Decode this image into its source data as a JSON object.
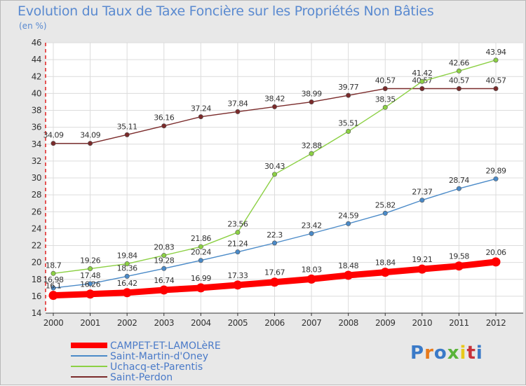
{
  "chart_data": {
    "type": "line",
    "title": "Evolution du Taux de Taxe Foncière sur les Propriétés Non Bâties",
    "unit_label": "(en %)",
    "categories": [
      "2000",
      "2001",
      "2002",
      "2003",
      "2004",
      "2005",
      "2006",
      "2007",
      "2008",
      "2009",
      "2010",
      "2011",
      "2012"
    ],
    "ylim": [
      14,
      46
    ],
    "yticks": [
      14,
      16,
      18,
      20,
      22,
      24,
      26,
      28,
      30,
      32,
      34,
      36,
      38,
      40,
      42,
      44,
      46
    ],
    "grid": true,
    "legend_position": "bottom-left",
    "series": [
      {
        "name": "CAMPET-ET-LAMOLèRE",
        "color": "#ff0000",
        "values": [
          16.1,
          16.26,
          16.42,
          16.74,
          16.99,
          17.33,
          17.67,
          18.03,
          18.48,
          18.84,
          19.21,
          19.58,
          20.06
        ],
        "labels": [
          "16.1",
          "16.26",
          "16.42",
          "16.74",
          "16.99",
          "17.33",
          "17.67",
          "18.03",
          "18.48",
          "18.84",
          "19.21",
          "19.58",
          "20.06"
        ]
      },
      {
        "name": "Saint-Martin-d'Oney",
        "color": "#4a8ac8",
        "values": [
          16.98,
          17.48,
          18.36,
          19.28,
          20.24,
          21.24,
          22.3,
          23.42,
          24.59,
          25.82,
          27.37,
          28.74,
          29.89
        ],
        "labels": [
          "16.98",
          "17.48",
          "18.36",
          "19.28",
          "20.24",
          "21.24",
          "22.3",
          "23.42",
          "24.59",
          "25.82",
          "27.37",
          "28.74",
          "29.89"
        ]
      },
      {
        "name": "Uchacq-et-Parentis",
        "color": "#8cd044",
        "values": [
          18.7,
          19.26,
          19.84,
          20.83,
          21.86,
          23.56,
          30.43,
          32.88,
          35.51,
          38.35,
          41.42,
          42.66,
          43.94
        ],
        "labels": [
          "18.7",
          "19.26",
          "19.84",
          "20.83",
          "21.86",
          "23.56",
          "30.43",
          "32.88",
          "35.51",
          "38.35",
          "41.42",
          "42.66",
          "43.94"
        ]
      },
      {
        "name": "Saint-Perdon",
        "color": "#7a2a2a",
        "values": [
          34.09,
          34.09,
          35.11,
          36.16,
          37.24,
          37.84,
          38.42,
          38.99,
          39.77,
          40.57,
          40.57,
          40.57,
          40.57
        ],
        "labels": [
          "34.09",
          "34.09",
          "35.11",
          "36.16",
          "37.24",
          "37.84",
          "38.42",
          "38.99",
          "39.77",
          "40.57",
          "40.57",
          "40.57",
          "40.57"
        ]
      }
    ]
  },
  "logo": {
    "letters": [
      "P",
      "r",
      "o",
      "x",
      "i",
      "t",
      "i"
    ],
    "colors": [
      "#3a7ac8",
      "#e87a1a",
      "#3a7ac8",
      "#5ab43a",
      "#e8c81a",
      "#c8323a",
      "#3a7ac8"
    ]
  }
}
